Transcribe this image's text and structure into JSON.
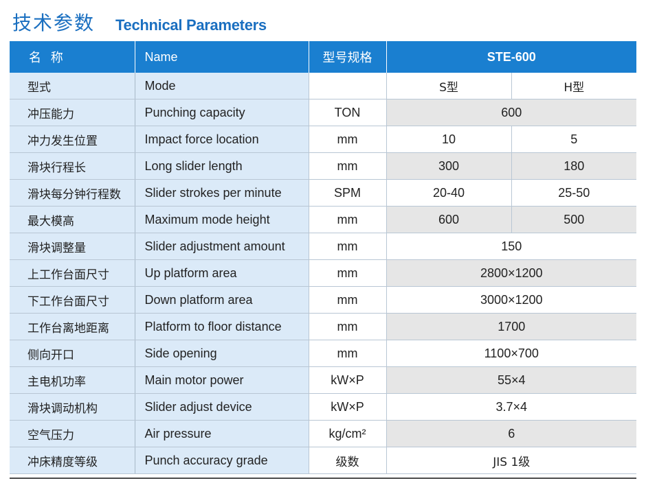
{
  "header": {
    "title_cn": "技术参数",
    "title_en": "Technical Parameters"
  },
  "table": {
    "headers": {
      "name_cn": "名 称",
      "name_en": "Name",
      "spec": "型号规格",
      "model": "STE-600"
    },
    "rows": [
      {
        "cn": "型式",
        "en": "Mode",
        "unit": "",
        "s": "S型",
        "h": "H型",
        "merged": false,
        "shade": false
      },
      {
        "cn": "冲压能力",
        "en": "Punching capacity",
        "unit": "TON",
        "v": "600",
        "merged": true,
        "shade": true
      },
      {
        "cn": "冲力发生位置",
        "en": "Impact force location",
        "unit": "mm",
        "s": "10",
        "h": "5",
        "merged": false,
        "shade": false
      },
      {
        "cn": "滑块行程长",
        "en": "Long slider length",
        "unit": "mm",
        "s": "300",
        "h": "180",
        "merged": false,
        "shade": true
      },
      {
        "cn": "滑块每分钟行程数",
        "en": "Slider strokes per minute",
        "unit": "SPM",
        "s": "20-40",
        "h": "25-50",
        "merged": false,
        "shade": false
      },
      {
        "cn": "最大模高",
        "en": "Maximum mode height",
        "unit": "mm",
        "s": "600",
        "h": "500",
        "merged": false,
        "shade": true
      },
      {
        "cn": "滑块调整量",
        "en": "Slider adjustment amount",
        "unit": "mm",
        "v": "150",
        "merged": true,
        "shade": false
      },
      {
        "cn": "上工作台面尺寸",
        "en": "Up platform area",
        "unit": "mm",
        "v": "2800×1200",
        "merged": true,
        "shade": true
      },
      {
        "cn": "下工作台面尺寸",
        "en": "Down platform area",
        "unit": "mm",
        "v": "3000×1200",
        "merged": true,
        "shade": false
      },
      {
        "cn": "工作台离地距离",
        "en": "Platform to floor distance",
        "unit": "mm",
        "v": "1700",
        "merged": true,
        "shade": true
      },
      {
        "cn": "侧向开口",
        "en": "Side opening",
        "unit": "mm",
        "v": "1100×700",
        "merged": true,
        "shade": false
      },
      {
        "cn": "主电机功率",
        "en": "Main motor power",
        "unit": "kW×P",
        "v": "55×4",
        "merged": true,
        "shade": true
      },
      {
        "cn": "滑块调动机构",
        "en": "Slider adjust device",
        "unit": "kW×P",
        "v": "3.7×4",
        "merged": true,
        "shade": false
      },
      {
        "cn": "空气压力",
        "en": "Air pressure",
        "unit": "kg/cm²",
        "v": "6",
        "merged": true,
        "shade": true
      },
      {
        "cn": "冲床精度等级",
        "en": "Punch accuracy grade",
        "unit": "级数",
        "v": "JIS 1级",
        "merged": true,
        "shade": false
      }
    ]
  }
}
